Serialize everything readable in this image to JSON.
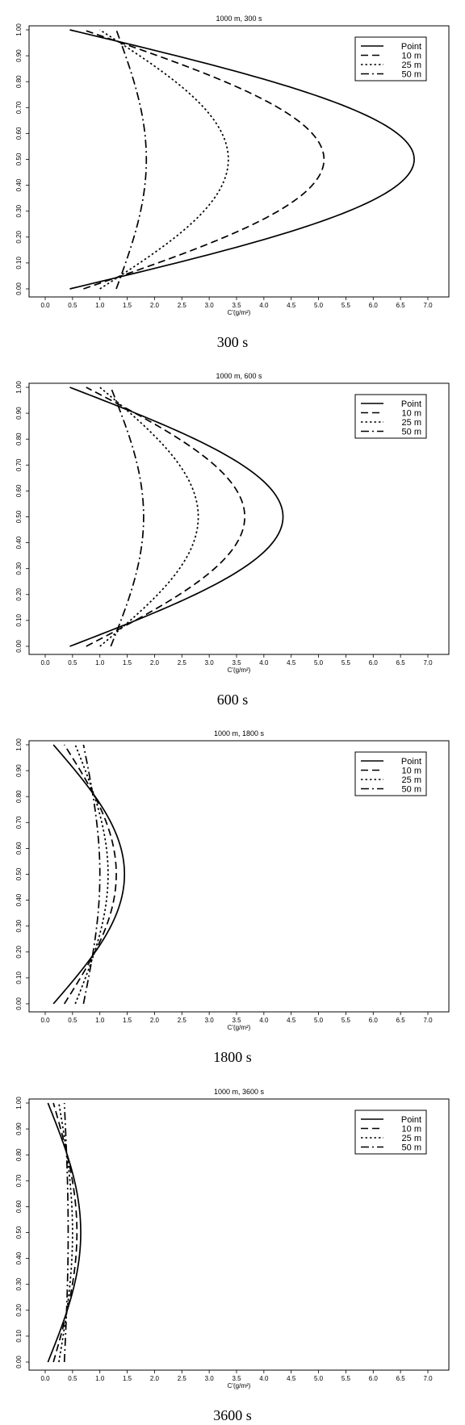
{
  "chart_data": [
    {
      "type": "line",
      "title": "1000 m, 300 s",
      "caption": "300 s",
      "xlabel": "C'(g/m²)",
      "ylabel": "",
      "xlim": [
        0,
        7
      ],
      "ylim": [
        0,
        1
      ],
      "xticks": [
        "0.0",
        "0.5",
        "1.0",
        "1.5",
        "2.0",
        "2.5",
        "3.0",
        "3.5",
        "4.0",
        "4.5",
        "5.0",
        "5.5",
        "6.0",
        "6.5",
        "7.0"
      ],
      "yticks": [
        "0.00",
        "0.10",
        "0.20",
        "0.30",
        "0.40",
        "0.50",
        "0.60",
        "0.70",
        "0.80",
        "0.90",
        "1.00"
      ],
      "legend": "top-right",
      "series": [
        {
          "name": "Point",
          "style": "solid",
          "edge": 0.45,
          "peak": 6.75
        },
        {
          "name": "10 m",
          "style": "dash",
          "edge": 0.7,
          "peak": 5.1
        },
        {
          "name": "25 m",
          "style": "dot",
          "edge": 1.0,
          "peak": 3.35
        },
        {
          "name": "50 m",
          "style": "dashdot",
          "edge": 1.3,
          "peak": 1.85
        }
      ]
    },
    {
      "type": "line",
      "title": "1000 m, 600 s",
      "caption": "600 s",
      "xlabel": "C'(g/m²)",
      "ylabel": "",
      "xlim": [
        0,
        7
      ],
      "ylim": [
        0,
        1
      ],
      "xticks": [
        "0.0",
        "0.5",
        "1.0",
        "1.5",
        "2.0",
        "2.5",
        "3.0",
        "3.5",
        "4.0",
        "4.5",
        "5.0",
        "5.5",
        "6.0",
        "6.5",
        "7.0"
      ],
      "yticks": [
        "0.00",
        "0.10",
        "0.20",
        "0.30",
        "0.40",
        "0.50",
        "0.60",
        "0.70",
        "0.80",
        "0.90",
        "1.00"
      ],
      "legend": "top-right",
      "series": [
        {
          "name": "Point",
          "style": "solid",
          "edge": 0.45,
          "peak": 4.35
        },
        {
          "name": "10 m",
          "style": "dash",
          "edge": 0.75,
          "peak": 3.65
        },
        {
          "name": "25 m",
          "style": "dot",
          "edge": 1.0,
          "peak": 2.8
        },
        {
          "name": "50 m",
          "style": "dashdot",
          "edge": 1.2,
          "peak": 1.8
        }
      ]
    },
    {
      "type": "line",
      "title": "1000 m, 1800 s",
      "caption": "1800 s",
      "xlabel": "C'(g/m²)",
      "ylabel": "",
      "xlim": [
        0,
        7
      ],
      "ylim": [
        0,
        1
      ],
      "xticks": [
        "0.0",
        "0.5",
        "1.0",
        "1.5",
        "2.0",
        "2.5",
        "3.0",
        "3.5",
        "4.0",
        "4.5",
        "5.0",
        "5.5",
        "6.0",
        "6.5",
        "7.0"
      ],
      "yticks": [
        "0.00",
        "0.10",
        "0.20",
        "0.30",
        "0.40",
        "0.50",
        "0.60",
        "0.70",
        "0.80",
        "0.90",
        "1.00"
      ],
      "legend": "top-right",
      "series": [
        {
          "name": "Point",
          "style": "solid",
          "edge": 0.15,
          "peak": 1.45
        },
        {
          "name": "10 m",
          "style": "dash",
          "edge": 0.35,
          "peak": 1.3
        },
        {
          "name": "25 m",
          "style": "dot",
          "edge": 0.55,
          "peak": 1.15
        },
        {
          "name": "50 m",
          "style": "dashdot",
          "edge": 0.7,
          "peak": 1.0
        }
      ]
    },
    {
      "type": "line",
      "title": "1000 m, 3600 s",
      "caption": "3600 s",
      "xlabel": "C'(g/m²)",
      "ylabel": "",
      "xlim": [
        0,
        7
      ],
      "ylim": [
        0,
        1
      ],
      "xticks": [
        "0.0",
        "0.5",
        "1.0",
        "1.5",
        "2.0",
        "2.5",
        "3.0",
        "3.5",
        "4.0",
        "4.5",
        "5.0",
        "5.5",
        "6.0",
        "6.5",
        "7.0"
      ],
      "yticks": [
        "0.00",
        "0.10",
        "0.20",
        "0.30",
        "0.40",
        "0.50",
        "0.60",
        "0.70",
        "0.80",
        "0.90",
        "1.00"
      ],
      "legend": "top-right",
      "series": [
        {
          "name": "Point",
          "style": "solid",
          "edge": 0.05,
          "peak": 0.65
        },
        {
          "name": "10 m",
          "style": "dash",
          "edge": 0.15,
          "peak": 0.58
        },
        {
          "name": "25 m",
          "style": "dot",
          "edge": 0.25,
          "peak": 0.5
        },
        {
          "name": "50 m",
          "style": "dashdot",
          "edge": 0.35,
          "peak": 0.42
        }
      ]
    }
  ]
}
